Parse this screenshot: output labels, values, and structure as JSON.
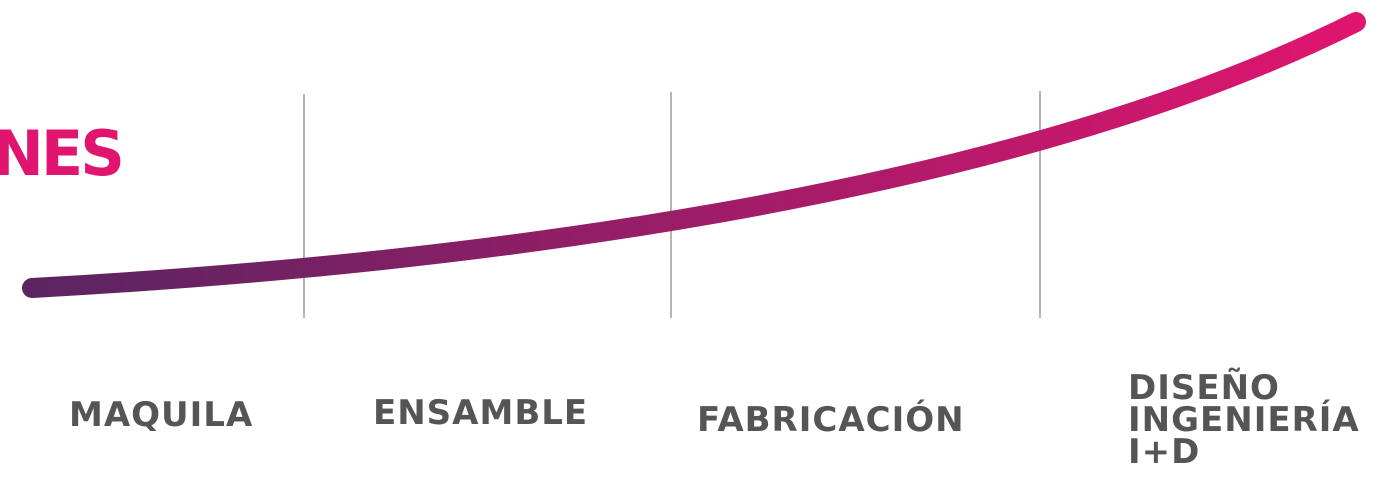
{
  "heading": {
    "fragment": "NES",
    "color": "#e0156f"
  },
  "curve": {
    "color_start": "#5a2461",
    "color_end": "#e0156f",
    "divider_color": "#b5b5b5"
  },
  "stages": [
    {
      "lines": [
        "MAQUILA"
      ]
    },
    {
      "lines": [
        "ENSAMBLE"
      ]
    },
    {
      "lines": [
        "FABRICACIÓN"
      ]
    },
    {
      "lines": [
        "DISEÑO",
        "INGENIERÍA",
        "I+D"
      ]
    }
  ],
  "label_color": "#555555"
}
